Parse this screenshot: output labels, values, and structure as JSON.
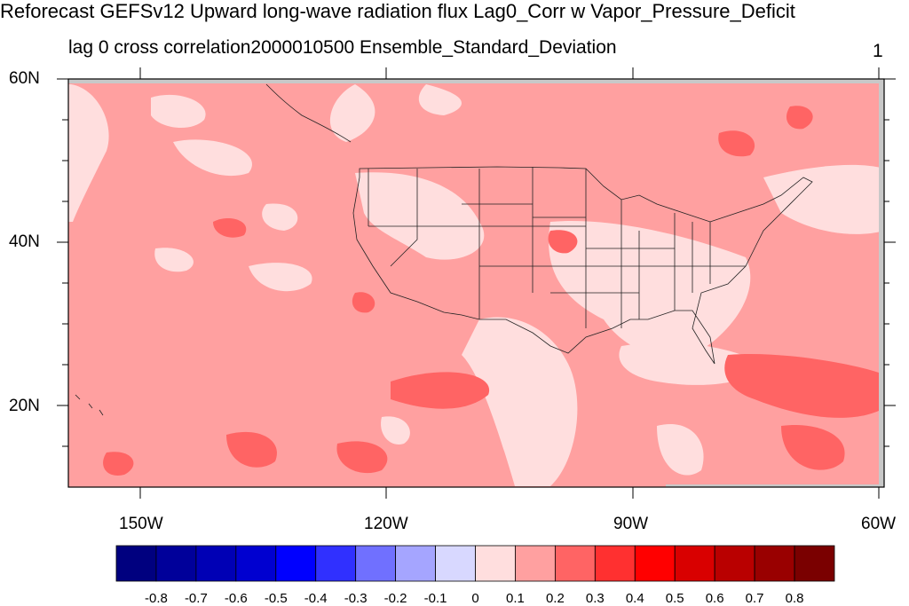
{
  "title": "Reforecast GEFSv12 Upward long-wave radiation flux Lag0_Corr w Vapor_Pressure_Deficit",
  "subtitle": "lag 0 cross correlation2000010500 Ensemble_Standard_Deviation",
  "panel_number": "1",
  "map": {
    "lat_ticks": [
      "60N",
      "40N",
      "20N"
    ],
    "lon_ticks": [
      "150W",
      "120W",
      "90W",
      "60W"
    ],
    "lat_range": [
      10,
      60
    ],
    "lon_range": [
      -160,
      -60
    ],
    "background_color": "#ffa0a0"
  },
  "colorbar": {
    "colors": [
      "#00007f",
      "#00009a",
      "#0000b5",
      "#0000d0",
      "#0000ff",
      "#3030ff",
      "#7070ff",
      "#a5a5ff",
      "#d8d8ff",
      "#ffdede",
      "#ffa0a0",
      "#ff6464",
      "#ff3030",
      "#ff0000",
      "#d90000",
      "#b90000",
      "#990000",
      "#7a0000"
    ],
    "labels": [
      "-0.8",
      "-0.7",
      "-0.6",
      "-0.5",
      "-0.4",
      "-0.3",
      "-0.2",
      "-0.1",
      "0",
      "0.1",
      "0.2",
      "0.3",
      "0.4",
      "0.5",
      "0.6",
      "0.7",
      "0.8"
    ]
  }
}
